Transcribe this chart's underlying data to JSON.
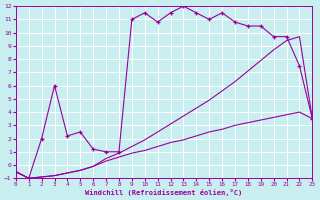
{
  "bg_color": "#c8eef0",
  "grid_color": "#ffffff",
  "line_color": "#990099",
  "xlabel": "Windchill (Refroidissement éolien,°C)",
  "xlim": [
    0,
    23
  ],
  "ylim": [
    -1,
    12
  ],
  "xticks": [
    0,
    1,
    2,
    3,
    4,
    5,
    6,
    7,
    8,
    9,
    10,
    11,
    12,
    13,
    14,
    15,
    16,
    17,
    18,
    19,
    20,
    21,
    22,
    23
  ],
  "yticks": [
    -1,
    0,
    1,
    2,
    3,
    4,
    5,
    6,
    7,
    8,
    9,
    10,
    11,
    12
  ],
  "curve1_x": [
    0,
    1,
    2,
    3,
    4,
    5,
    6,
    7,
    8,
    9,
    10,
    11,
    12,
    13,
    14,
    15,
    16,
    17,
    18,
    19,
    20,
    21,
    22,
    23
  ],
  "curve1_y": [
    -0.5,
    -1.0,
    -0.9,
    -0.8,
    -0.6,
    -0.4,
    -0.1,
    0.3,
    0.6,
    0.9,
    1.1,
    1.4,
    1.7,
    1.9,
    2.2,
    2.5,
    2.7,
    3.0,
    3.2,
    3.4,
    3.6,
    3.8,
    4.0,
    3.5
  ],
  "curve2_x": [
    0,
    1,
    2,
    3,
    4,
    5,
    6,
    7,
    8,
    9,
    10,
    11,
    12,
    13,
    14,
    15,
    16,
    17,
    18,
    19,
    20,
    21,
    22,
    23
  ],
  "curve2_y": [
    -0.5,
    -1.0,
    -0.9,
    -0.8,
    -0.6,
    -0.4,
    -0.1,
    0.5,
    0.9,
    1.4,
    1.9,
    2.5,
    3.1,
    3.7,
    4.3,
    4.9,
    5.6,
    6.3,
    7.1,
    7.9,
    8.7,
    9.4,
    9.7,
    3.5
  ],
  "curve3_x": [
    0,
    1,
    2,
    3,
    4,
    5,
    6,
    7,
    8,
    9,
    10,
    11,
    12,
    13,
    14,
    15,
    16,
    17,
    18,
    19,
    20,
    21,
    22,
    23
  ],
  "curve3_y": [
    -0.5,
    -1.0,
    2.0,
    6.0,
    2.2,
    2.5,
    1.2,
    1.0,
    1.0,
    11.0,
    11.5,
    10.8,
    11.5,
    12.0,
    11.5,
    11.0,
    11.5,
    10.8,
    10.5,
    10.5,
    9.7,
    9.7,
    7.5,
    3.5
  ]
}
